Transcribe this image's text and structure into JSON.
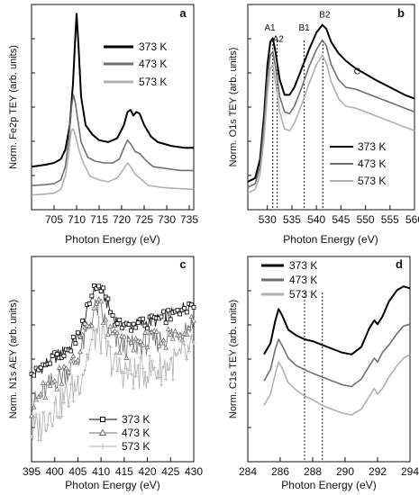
{
  "chart_data": [
    {
      "panel_label": "a",
      "type": "line",
      "xlabel": "Photon Energy (eV)",
      "ylabel": "Norm. Fe2p TEY (arb. units)",
      "xlim": [
        700,
        736
      ],
      "ylim": [
        0,
        1
      ],
      "xticks": [
        705,
        710,
        715,
        720,
        725,
        730,
        735
      ],
      "xtick_labels": [
        "705",
        "710",
        "715",
        "720",
        "725",
        "730",
        "735"
      ],
      "legend_position": "top-right",
      "markers": false,
      "series": [
        {
          "name": "373 K",
          "color": "#000000",
          "x": [
            700,
            703,
            705,
            706.5,
            707.5,
            708.5,
            709.2,
            709.7,
            710.0,
            710.4,
            711,
            712,
            713.5,
            715,
            717,
            719,
            720.5,
            721.3,
            722,
            722.6,
            723.3,
            724,
            725,
            726.5,
            728,
            731,
            734,
            736
          ],
          "y": [
            0.18,
            0.19,
            0.2,
            0.22,
            0.27,
            0.4,
            0.62,
            0.86,
            0.99,
            0.83,
            0.55,
            0.4,
            0.35,
            0.32,
            0.31,
            0.33,
            0.4,
            0.47,
            0.48,
            0.45,
            0.47,
            0.46,
            0.4,
            0.34,
            0.31,
            0.29,
            0.28,
            0.28
          ]
        },
        {
          "name": "473 K",
          "color": "#6f6f6f",
          "x": [
            700,
            703,
            705,
            706.5,
            707.5,
            708.3,
            708.9,
            709.3,
            709.7,
            710.2,
            711,
            712.5,
            714,
            716,
            718,
            719.5,
            720.5,
            721.3,
            722,
            723,
            724,
            725.5,
            727,
            730,
            733,
            736
          ],
          "y": [
            0.08,
            0.085,
            0.09,
            0.11,
            0.18,
            0.33,
            0.5,
            0.56,
            0.52,
            0.44,
            0.31,
            0.23,
            0.21,
            0.2,
            0.2,
            0.22,
            0.28,
            0.32,
            0.3,
            0.26,
            0.25,
            0.21,
            0.18,
            0.17,
            0.16,
            0.16
          ]
        },
        {
          "name": "573 K",
          "color": "#b0b0b0",
          "x": [
            700,
            703,
            705,
            706.5,
            707.5,
            708.3,
            708.8,
            709.2,
            709.8,
            710.5,
            711.5,
            713,
            715,
            717,
            719,
            720.5,
            721.3,
            722,
            723,
            724.5,
            726,
            729,
            732,
            736
          ],
          "y": [
            0.03,
            0.035,
            0.04,
            0.06,
            0.13,
            0.26,
            0.37,
            0.38,
            0.34,
            0.27,
            0.2,
            0.13,
            0.11,
            0.1,
            0.12,
            0.17,
            0.2,
            0.18,
            0.14,
            0.11,
            0.08,
            0.07,
            0.065,
            0.06
          ]
        }
      ]
    },
    {
      "panel_label": "b",
      "type": "line",
      "xlabel": "Photon Energy (eV)",
      "ylabel": "Norm. O1s TEY (arb. units)",
      "xlim": [
        526,
        560
      ],
      "ylim": [
        0,
        1
      ],
      "xticks": [
        530,
        535,
        540,
        545,
        550,
        555,
        560
      ],
      "xtick_labels": [
        "530",
        "535",
        "540",
        "545",
        "550",
        "555",
        "560"
      ],
      "legend_position": "bottom-right",
      "markers": false,
      "annotations": [
        {
          "text": "A1",
          "x": 530.5,
          "y": 0.9
        },
        {
          "text": "A2",
          "x": 532.2,
          "y": 0.84
        },
        {
          "text": "B1",
          "x": 537.5,
          "y": 0.9
        },
        {
          "text": "B2",
          "x": 541.7,
          "y": 0.97
        },
        {
          "text": "C",
          "x": 548.3,
          "y": 0.67
        }
      ],
      "reference_lines_x": [
        531.1,
        532.0,
        537.5,
        541.3
      ],
      "series": [
        {
          "name": "373 K",
          "color": "#000000",
          "x": [
            526,
            527.5,
            528.5,
            529.3,
            530,
            530.6,
            531.1,
            531.7,
            532.5,
            533.5,
            534.5,
            535.5,
            537,
            538.5,
            540,
            541.2,
            542,
            543,
            544.5,
            546,
            548,
            550,
            552,
            555,
            558,
            560
          ],
          "y": [
            0.1,
            0.12,
            0.22,
            0.45,
            0.72,
            0.84,
            0.86,
            0.78,
            0.64,
            0.56,
            0.56,
            0.6,
            0.7,
            0.8,
            0.89,
            0.93,
            0.91,
            0.84,
            0.78,
            0.74,
            0.7,
            0.67,
            0.64,
            0.6,
            0.56,
            0.54
          ]
        },
        {
          "name": "473 K",
          "color": "#6f6f6f",
          "x": [
            526,
            527.5,
            528.5,
            529.3,
            530,
            530.6,
            531.1,
            531.7,
            532.5,
            533.5,
            534.5,
            535.5,
            537,
            538.5,
            540,
            541.2,
            542,
            543,
            544.5,
            546,
            548,
            550,
            552,
            555,
            558,
            560
          ],
          "y": [
            0.07,
            0.09,
            0.18,
            0.4,
            0.65,
            0.77,
            0.79,
            0.7,
            0.55,
            0.47,
            0.46,
            0.5,
            0.6,
            0.71,
            0.8,
            0.85,
            0.82,
            0.72,
            0.64,
            0.6,
            0.59,
            0.57,
            0.55,
            0.52,
            0.49,
            0.47
          ]
        },
        {
          "name": "573 K",
          "color": "#b0b0b0",
          "x": [
            526,
            527.5,
            528.5,
            529.3,
            530,
            530.6,
            531.1,
            531.7,
            532.5,
            533.5,
            534.5,
            535.5,
            537,
            538.5,
            540,
            541.2,
            542,
            543,
            544.5,
            546,
            548,
            550,
            552,
            555,
            558,
            560
          ],
          "y": [
            0.04,
            0.06,
            0.14,
            0.33,
            0.57,
            0.7,
            0.72,
            0.62,
            0.47,
            0.38,
            0.37,
            0.41,
            0.51,
            0.62,
            0.72,
            0.77,
            0.73,
            0.63,
            0.54,
            0.5,
            0.49,
            0.47,
            0.45,
            0.42,
            0.39,
            0.37
          ]
        }
      ]
    },
    {
      "panel_label": "c",
      "type": "line",
      "xlabel": "Photon Energy (eV)",
      "ylabel": "Norm. N1s AEY (arb. units)",
      "xlim": [
        395,
        430
      ],
      "ylim": [
        0,
        1
      ],
      "xticks": [
        395,
        400,
        405,
        410,
        415,
        420,
        425,
        430
      ],
      "xtick_labels": [
        "395",
        "400",
        "405",
        "410",
        "415",
        "420",
        "425",
        "430"
      ],
      "legend_position": "bottom-center",
      "markers": true,
      "series": [
        {
          "name": "373 K",
          "color": "#000000",
          "marker": "open-square",
          "x": [
            395,
            397,
            399,
            401,
            403,
            405,
            406.5,
            408,
            409,
            410,
            411,
            412,
            413,
            414,
            416,
            418,
            420,
            422,
            424,
            426,
            428,
            430
          ],
          "y": [
            0.4,
            0.45,
            0.49,
            0.52,
            0.55,
            0.61,
            0.71,
            0.83,
            0.88,
            0.87,
            0.81,
            0.75,
            0.71,
            0.68,
            0.67,
            0.68,
            0.69,
            0.7,
            0.72,
            0.74,
            0.77,
            0.8
          ]
        },
        {
          "name": "473 K",
          "color": "#6f6f6f",
          "marker": "open-triangle",
          "x": [
            395,
            397,
            399,
            401,
            403,
            405,
            406.5,
            408,
            409,
            410,
            411,
            412,
            413,
            414,
            416,
            418,
            420,
            422,
            424,
            426,
            428,
            430
          ],
          "y": [
            0.25,
            0.3,
            0.36,
            0.4,
            0.44,
            0.5,
            0.6,
            0.72,
            0.77,
            0.75,
            0.68,
            0.63,
            0.59,
            0.57,
            0.56,
            0.57,
            0.58,
            0.59,
            0.61,
            0.63,
            0.66,
            0.69
          ]
        },
        {
          "name": "573 K",
          "color": "#b0b0b0",
          "marker": "plus",
          "x": [
            395,
            397,
            399,
            401,
            403,
            405,
            406.5,
            408,
            409,
            410,
            411,
            412,
            413,
            414,
            416,
            418,
            420,
            422,
            424,
            426,
            428,
            430
          ],
          "y": [
            0.1,
            0.15,
            0.22,
            0.26,
            0.31,
            0.37,
            0.46,
            0.58,
            0.63,
            0.61,
            0.55,
            0.5,
            0.46,
            0.44,
            0.42,
            0.42,
            0.43,
            0.44,
            0.46,
            0.48,
            0.51,
            0.54
          ]
        }
      ]
    },
    {
      "panel_label": "d",
      "type": "line",
      "xlabel": "Photon Energy (eV)",
      "ylabel": "Norm. C1s TEY (arb. units)",
      "xlim": [
        284,
        294
      ],
      "ylim": [
        0,
        1
      ],
      "xticks": [
        284,
        286,
        288,
        290,
        292,
        294
      ],
      "xtick_labels": [
        "284",
        "286",
        "288",
        "290",
        "292",
        "294"
      ],
      "legend_position": "top-left",
      "markers": false,
      "reference_lines_x": [
        287.5,
        288.6
      ],
      "series": [
        {
          "name": "373 K",
          "color": "#000000",
          "x": [
            285.0,
            285.4,
            285.7,
            285.9,
            286.1,
            286.5,
            287.0,
            287.5,
            288.0,
            288.6,
            289.2,
            289.8,
            290.4,
            291.0,
            291.5,
            291.8,
            292.0,
            292.3,
            292.7,
            293.2,
            293.6,
            294
          ],
          "y": [
            0.52,
            0.58,
            0.7,
            0.76,
            0.73,
            0.65,
            0.62,
            0.6,
            0.59,
            0.57,
            0.55,
            0.53,
            0.52,
            0.56,
            0.66,
            0.7,
            0.68,
            0.72,
            0.8,
            0.86,
            0.88,
            0.87
          ]
        },
        {
          "name": "473 K",
          "color": "#6f6f6f",
          "x": [
            285.0,
            285.4,
            285.7,
            285.9,
            286.1,
            286.5,
            287.0,
            287.5,
            288.0,
            288.6,
            289.2,
            289.8,
            290.4,
            291.0,
            291.5,
            291.8,
            292.0,
            292.3,
            292.7,
            293.2,
            293.6,
            294
          ],
          "y": [
            0.38,
            0.44,
            0.55,
            0.6,
            0.57,
            0.5,
            0.46,
            0.44,
            0.42,
            0.4,
            0.38,
            0.36,
            0.35,
            0.39,
            0.46,
            0.5,
            0.48,
            0.53,
            0.57,
            0.63,
            0.67,
            0.68
          ]
        },
        {
          "name": "573 K",
          "color": "#b0b0b0",
          "x": [
            285.0,
            285.4,
            285.7,
            285.9,
            286.1,
            286.5,
            287.0,
            287.5,
            288.0,
            288.6,
            289.2,
            289.8,
            290.4,
            291.0,
            291.5,
            291.8,
            292.0,
            292.3,
            292.7,
            293.2,
            293.6,
            294
          ],
          "y": [
            0.25,
            0.31,
            0.42,
            0.48,
            0.45,
            0.37,
            0.33,
            0.3,
            0.28,
            0.25,
            0.23,
            0.21,
            0.2,
            0.23,
            0.3,
            0.34,
            0.31,
            0.34,
            0.4,
            0.46,
            0.5,
            0.52
          ]
        }
      ]
    }
  ]
}
